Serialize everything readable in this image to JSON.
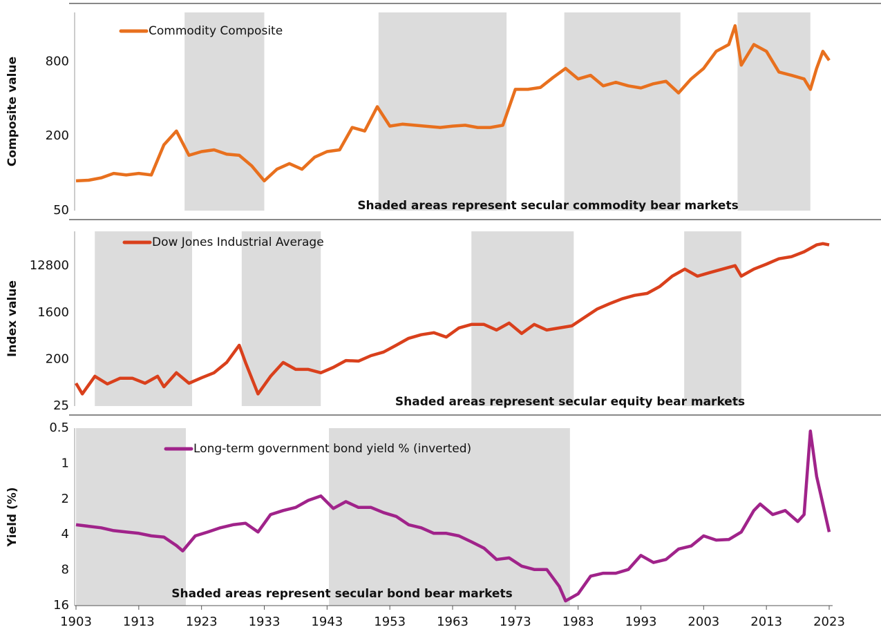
{
  "chart_data": [
    {
      "type": "line",
      "ylabel": "Composite value",
      "annotation": "Shaded areas represent secular commodity bear markets",
      "log_scale": true,
      "inverted": false,
      "xlim": [
        1903,
        2023
      ],
      "ylim": [
        50,
        2000
      ],
      "yticks": [
        50,
        200,
        800
      ],
      "shaded_color": "#dcdcdc",
      "shaded": [
        [
          1920.3,
          1933
        ],
        [
          1951.2,
          1971.6
        ],
        [
          1980.8,
          1999.3
        ],
        [
          2008.4,
          2020
        ]
      ],
      "x": [
        1903,
        1905,
        1907,
        1909,
        1911,
        1913,
        1915,
        1917,
        1919,
        1921,
        1923,
        1925,
        1927,
        1929,
        1931,
        1933,
        1935,
        1937,
        1939,
        1941,
        1943,
        1945,
        1947,
        1949,
        1951,
        1953,
        1955,
        1957,
        1959,
        1961,
        1963,
        1965,
        1967,
        1969,
        1971,
        1973,
        1975,
        1977,
        1979,
        1981,
        1983,
        1985,
        1987,
        1989,
        1991,
        1993,
        1995,
        1997,
        1999,
        2001,
        2003,
        2005,
        2007,
        2008,
        2009,
        2011,
        2013,
        2015,
        2017,
        2019,
        2020,
        2021,
        2022,
        2023
      ],
      "series": [
        {
          "name": "Commodity Composite",
          "color": "#e8701e",
          "values": [
            87,
            88,
            92,
            100,
            97,
            100,
            97,
            170,
            220,
            140,
            150,
            155,
            143,
            140,
            115,
            87,
            108,
            120,
            108,
            135,
            150,
            155,
            235,
            220,
            346,
            241,
            250,
            245,
            240,
            235,
            241,
            245,
            235,
            235,
            245,
            478,
            478,
            495,
            595,
            705,
            580,
            620,
            510,
            545,
            510,
            490,
            530,
            555,
            447,
            580,
            705,
            970,
            1100,
            1560,
            750,
            1100,
            970,
            660,
            620,
            580,
            478,
            705,
            970,
            820
          ]
        }
      ]
    },
    {
      "type": "line",
      "ylabel": "Index value",
      "annotation": "Shaded areas represent secular equity bear markets",
      "log_scale": true,
      "inverted": false,
      "xlim": [
        1903,
        2023
      ],
      "ylim": [
        25,
        60000
      ],
      "yticks": [
        25,
        200,
        1600,
        12800
      ],
      "shaded_color": "#dcdcdc",
      "shaded": [
        [
          1906,
          1921.5
        ],
        [
          1929.4,
          1942
        ],
        [
          1966,
          1982.3
        ],
        [
          1999.9,
          2009
        ]
      ],
      "x": [
        1903,
        1904,
        1906,
        1908,
        1910,
        1912,
        1914,
        1916,
        1917,
        1919,
        1921,
        1923,
        1925,
        1927,
        1929,
        1930,
        1932,
        1934,
        1936,
        1938,
        1940,
        1942,
        1944,
        1946,
        1948,
        1950,
        1952,
        1954,
        1956,
        1958,
        1960,
        1962,
        1964,
        1966,
        1968,
        1970,
        1972,
        1974,
        1976,
        1978,
        1980,
        1982,
        1984,
        1986,
        1988,
        1990,
        1992,
        1994,
        1996,
        1998,
        2000,
        2002,
        2004,
        2006,
        2008,
        2009,
        2011,
        2013,
        2015,
        2017,
        2019,
        2021,
        2022,
        2023
      ],
      "series": [
        {
          "name": "Dow Jones Industrial Average",
          "color": "#d9401c",
          "values": [
            69,
            43,
            94,
            67,
            86,
            86,
            69,
            94,
            59,
            110,
            69,
            88,
            110,
            174,
            375,
            174,
            43,
            94,
            174,
            128,
            128,
            110,
            140,
            190,
            185,
            236,
            277,
            375,
            512,
            600,
            655,
            540,
            810,
            950,
            950,
            740,
            1010,
            635,
            950,
            740,
            810,
            890,
            1290,
            1870,
            2390,
            2970,
            3460,
            3780,
            5140,
            8150,
            11150,
            8150,
            9550,
            11150,
            13000,
            8150,
            11150,
            13900,
            17700,
            19400,
            24100,
            32800,
            34700,
            32800
          ]
        }
      ]
    },
    {
      "type": "line",
      "ylabel": "Yield (%)",
      "annotation": "Shaded areas represent secular bond bear markets",
      "log_scale": true,
      "inverted": true,
      "xlim": [
        1903,
        2023
      ],
      "ylim": [
        0.5,
        16
      ],
      "yticks": [
        0.5,
        1,
        2,
        4,
        8,
        16
      ],
      "xticks": [
        1903,
        1913,
        1923,
        1933,
        1943,
        1953,
        1963,
        1973,
        1983,
        1993,
        2003,
        2013,
        2023
      ],
      "shaded_color": "#dcdcdc",
      "shaded": [
        [
          1903,
          1920.5
        ],
        [
          1943.3,
          1981.7
        ]
      ],
      "x": [
        1903,
        1905,
        1907,
        1909,
        1911,
        1913,
        1915,
        1917,
        1919,
        1920,
        1922,
        1924,
        1926,
        1928,
        1930,
        1932,
        1934,
        1936,
        1938,
        1940,
        1942,
        1944,
        1946,
        1948,
        1950,
        1952,
        1954,
        1956,
        1958,
        1960,
        1962,
        1964,
        1966,
        1968,
        1970,
        1972,
        1974,
        1976,
        1978,
        1980,
        1981,
        1983,
        1985,
        1987,
        1989,
        1991,
        1993,
        1995,
        1997,
        1999,
        2001,
        2003,
        2005,
        2007,
        2009,
        2011,
        2012,
        2014,
        2016,
        2018,
        2019,
        2020,
        2021,
        2022,
        2023
      ],
      "series": [
        {
          "name": "Long-term government bond yield % (inverted)",
          "color": "#a0238a",
          "values": [
            3.3,
            3.4,
            3.5,
            3.7,
            3.8,
            3.9,
            4.1,
            4.2,
            4.95,
            5.5,
            4.1,
            3.8,
            3.5,
            3.3,
            3.2,
            3.8,
            2.7,
            2.5,
            2.35,
            2.05,
            1.88,
            2.4,
            2.1,
            2.35,
            2.35,
            2.6,
            2.8,
            3.3,
            3.5,
            3.9,
            3.9,
            4.1,
            4.6,
            5.2,
            6.5,
            6.3,
            7.4,
            7.9,
            7.9,
            11,
            14.6,
            12.7,
            9,
            8.5,
            8.5,
            7.9,
            6,
            6.9,
            6.5,
            5.3,
            5,
            4.1,
            4.45,
            4.4,
            3.8,
            2.5,
            2.2,
            2.7,
            2.5,
            3.1,
            2.7,
            0.53,
            1.28,
            2.2,
            3.8
          ]
        }
      ]
    }
  ]
}
